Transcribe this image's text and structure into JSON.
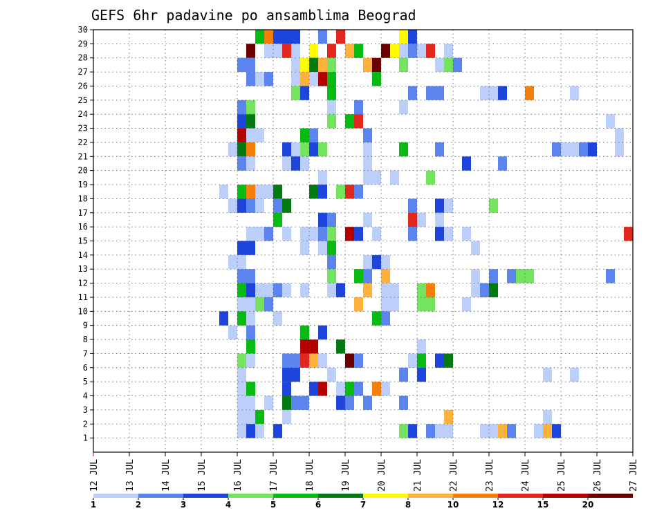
{
  "chart_data": {
    "type": "heatmap",
    "title": "GEFS 6hr padavine po ansamblima Beograd",
    "xlabel": "",
    "ylabel": "",
    "x_ticks": [
      "12 JUL",
      "13 JUL",
      "14 JUL",
      "15 JUL",
      "16 JUL",
      "17 JUL",
      "18 JUL",
      "19 JUL",
      "20 JUL",
      "21 JUL",
      "22 JUL",
      "23 JUL",
      "24 JUL",
      "25 JUL",
      "26 JUL",
      "27 JUL"
    ],
    "xlim": [
      "12 JUL 00Z",
      "27 JUL 00Z"
    ],
    "y_ticks": [
      1,
      2,
      3,
      4,
      5,
      6,
      7,
      8,
      9,
      10,
      11,
      12,
      13,
      14,
      15,
      16,
      17,
      18,
      19,
      20,
      21,
      22,
      23,
      24,
      25,
      26,
      27,
      28,
      29,
      30
    ],
    "ylim": [
      0,
      30
    ],
    "grid": true,
    "legend": {
      "placement": "bottom",
      "levels": [
        1,
        2,
        3,
        4,
        5,
        6,
        7,
        8,
        10,
        12,
        15,
        20
      ],
      "colors": [
        "#bccffa",
        "#5c84ee",
        "#1d45dc",
        "#74e35d",
        "#07bb12",
        "#037b12",
        "#fffc00",
        "#ffb23b",
        "#f57f0c",
        "#e2281e",
        "#b50000",
        "#6b0000"
      ]
    },
    "cells_note": "",
    "cells": [
      [
        "16 JUL 12Z",
        30,
        5
      ],
      [
        "16 JUL 18Z",
        30,
        9
      ],
      [
        "17 JUL 00Z",
        30,
        3
      ],
      [
        "17 JUL 06Z",
        30,
        3
      ],
      [
        "17 JUL 12Z",
        30,
        3
      ],
      [
        "18 JUL 18Z",
        30,
        10
      ],
      [
        "18 JUL 06Z",
        30,
        2
      ],
      [
        "20 JUL 12Z",
        30,
        7
      ],
      [
        "20 JUL 18Z",
        30,
        3
      ],
      [
        "16 JUL 18Z",
        29,
        1
      ],
      [
        "17 JUL 00Z",
        29,
        1
      ],
      [
        "16 JUL 06Z",
        29,
        12
      ],
      [
        "17 JUL 06Z",
        29,
        10
      ],
      [
        "17 JUL 12Z",
        29,
        1
      ],
      [
        "18 JUL 00Z",
        29,
        7
      ],
      [
        "18 JUL 12Z",
        29,
        10
      ],
      [
        "19 JUL 00Z",
        29,
        8
      ],
      [
        "19 JUL 06Z",
        29,
        5
      ],
      [
        "20 JUL 00Z",
        29,
        12
      ],
      [
        "20 JUL 06Z",
        29,
        7
      ],
      [
        "20 JUL 12Z",
        29,
        1
      ],
      [
        "20 JUL 18Z",
        29,
        2
      ],
      [
        "21 JUL 00Z",
        29,
        1
      ],
      [
        "21 JUL 06Z",
        29,
        10
      ],
      [
        "21 JUL 18Z",
        29,
        1
      ],
      [
        "16 JUL 00Z",
        28,
        2
      ],
      [
        "16 JUL 06Z",
        28,
        2
      ],
      [
        "17 JUL 12Z",
        28,
        1
      ],
      [
        "17 JUL 18Z",
        28,
        7
      ],
      [
        "18 JUL 00Z",
        28,
        6
      ],
      [
        "18 JUL 06Z",
        28,
        8
      ],
      [
        "18 JUL 12Z",
        28,
        4
      ],
      [
        "19 JUL 12Z",
        28,
        8
      ],
      [
        "19 JUL 18Z",
        28,
        12
      ],
      [
        "20 JUL 12Z",
        28,
        4
      ],
      [
        "21 JUL 12Z",
        28,
        1
      ],
      [
        "21 JUL 18Z",
        28,
        4
      ],
      [
        "22 JUL 00Z",
        28,
        2
      ],
      [
        "16 JUL 06Z",
        27,
        2
      ],
      [
        "16 JUL 12Z",
        27,
        1
      ],
      [
        "16 JUL 18Z",
        27,
        2
      ],
      [
        "17 JUL 12Z",
        27,
        1
      ],
      [
        "17 JUL 18Z",
        27,
        8
      ],
      [
        "18 JUL 00Z",
        27,
        1
      ],
      [
        "18 JUL 06Z",
        27,
        11
      ],
      [
        "18 JUL 12Z",
        27,
        5
      ],
      [
        "19 JUL 18Z",
        27,
        5
      ],
      [
        "27 JUL 00Z",
        27,
        6
      ],
      [
        "17 JUL 12Z",
        26,
        4
      ],
      [
        "17 JUL 18Z",
        26,
        3
      ],
      [
        "18 JUL 12Z",
        26,
        5
      ],
      [
        "20 JUL 18Z",
        26,
        2
      ],
      [
        "21 JUL 06Z",
        26,
        2
      ],
      [
        "21 JUL 12Z",
        26,
        2
      ],
      [
        "22 JUL 18Z",
        26,
        1
      ],
      [
        "23 JUL 00Z",
        26,
        1
      ],
      [
        "23 JUL 06Z",
        26,
        3
      ],
      [
        "24 JUL 00Z",
        26,
        9
      ],
      [
        "25 JUL 06Z",
        26,
        1
      ],
      [
        "16 JUL 00Z",
        25,
        2
      ],
      [
        "16 JUL 06Z",
        25,
        4
      ],
      [
        "18 JUL 12Z",
        25,
        1
      ],
      [
        "19 JUL 06Z",
        25,
        2
      ],
      [
        "20 JUL 12Z",
        25,
        1
      ],
      [
        "16 JUL 00Z",
        24,
        3
      ],
      [
        "16 JUL 06Z",
        24,
        6
      ],
      [
        "18 JUL 12Z",
        24,
        4
      ],
      [
        "19 JUL 00Z",
        24,
        5
      ],
      [
        "19 JUL 06Z",
        24,
        10
      ],
      [
        "26 JUL 06Z",
        24,
        1
      ],
      [
        "27 JUL 00Z",
        24,
        3
      ],
      [
        "16 JUL 00Z",
        23,
        11
      ],
      [
        "16 JUL 06Z",
        23,
        1
      ],
      [
        "16 JUL 12Z",
        23,
        1
      ],
      [
        "17 JUL 18Z",
        23,
        5
      ],
      [
        "18 JUL 00Z",
        23,
        2
      ],
      [
        "19 JUL 12Z",
        23,
        2
      ],
      [
        "26 JUL 12Z",
        23,
        1
      ],
      [
        "15 JUL 18Z",
        22,
        1
      ],
      [
        "16 JUL 00Z",
        22,
        6
      ],
      [
        "16 JUL 06Z",
        22,
        9
      ],
      [
        "17 JUL 06Z",
        22,
        3
      ],
      [
        "17 JUL 12Z",
        22,
        1
      ],
      [
        "17 JUL 18Z",
        22,
        4
      ],
      [
        "18 JUL 00Z",
        22,
        3
      ],
      [
        "18 JUL 06Z",
        22,
        4
      ],
      [
        "19 JUL 12Z",
        22,
        1
      ],
      [
        "20 JUL 12Z",
        22,
        5
      ],
      [
        "21 JUL 12Z",
        22,
        2
      ],
      [
        "24 JUL 18Z",
        22,
        2
      ],
      [
        "25 JUL 00Z",
        22,
        1
      ],
      [
        "25 JUL 06Z",
        22,
        1
      ],
      [
        "25 JUL 12Z",
        22,
        2
      ],
      [
        "25 JUL 18Z",
        22,
        3
      ],
      [
        "26 JUL 12Z",
        22,
        1
      ],
      [
        "16 JUL 00Z",
        21,
        2
      ],
      [
        "16 JUL 06Z",
        21,
        1
      ],
      [
        "17 JUL 06Z",
        21,
        1
      ],
      [
        "17 JUL 12Z",
        21,
        3
      ],
      [
        "17 JUL 18Z",
        21,
        1
      ],
      [
        "19 JUL 12Z",
        21,
        1
      ],
      [
        "22 JUL 06Z",
        21,
        3
      ],
      [
        "23 JUL 06Z",
        21,
        2
      ],
      [
        "18 JUL 06Z",
        20,
        1
      ],
      [
        "19 JUL 12Z",
        20,
        1
      ],
      [
        "19 JUL 18Z",
        20,
        1
      ],
      [
        "20 JUL 06Z",
        20,
        1
      ],
      [
        "21 JUL 06Z",
        20,
        4
      ],
      [
        "27 JUL 00Z",
        20,
        5
      ],
      [
        "15 JUL 12Z",
        19,
        1
      ],
      [
        "16 JUL 00Z",
        19,
        5
      ],
      [
        "16 JUL 06Z",
        19,
        9
      ],
      [
        "16 JUL 12Z",
        19,
        1
      ],
      [
        "16 JUL 18Z",
        19,
        1
      ],
      [
        "17 JUL 00Z",
        19,
        6
      ],
      [
        "18 JUL 00Z",
        19,
        6
      ],
      [
        "18 JUL 06Z",
        19,
        3
      ],
      [
        "18 JUL 18Z",
        19,
        4
      ],
      [
        "19 JUL 00Z",
        19,
        10
      ],
      [
        "19 JUL 06Z",
        19,
        2
      ],
      [
        "15 JUL 18Z",
        18,
        1
      ],
      [
        "16 JUL 00Z",
        18,
        3
      ],
      [
        "16 JUL 06Z",
        18,
        2
      ],
      [
        "16 JUL 12Z",
        18,
        1
      ],
      [
        "17 JUL 00Z",
        18,
        2
      ],
      [
        "17 JUL 06Z",
        18,
        6
      ],
      [
        "20 JUL 18Z",
        18,
        2
      ],
      [
        "21 JUL 12Z",
        18,
        3
      ],
      [
        "21 JUL 18Z",
        18,
        1
      ],
      [
        "23 JUL 00Z",
        18,
        4
      ],
      [
        "17 JUL 00Z",
        17,
        5
      ],
      [
        "18 JUL 06Z",
        17,
        3
      ],
      [
        "18 JUL 12Z",
        17,
        2
      ],
      [
        "19 JUL 12Z",
        17,
        1
      ],
      [
        "20 JUL 18Z",
        17,
        10
      ],
      [
        "21 JUL 00Z",
        17,
        1
      ],
      [
        "21 JUL 12Z",
        17,
        1
      ],
      [
        "27 JUL 00Z",
        17,
        6
      ],
      [
        "16 JUL 06Z",
        16,
        1
      ],
      [
        "16 JUL 12Z",
        16,
        1
      ],
      [
        "16 JUL 18Z",
        16,
        2
      ],
      [
        "17 JUL 06Z",
        16,
        1
      ],
      [
        "17 JUL 18Z",
        16,
        1
      ],
      [
        "18 JUL 00Z",
        16,
        1
      ],
      [
        "18 JUL 06Z",
        16,
        2
      ],
      [
        "18 JUL 12Z",
        16,
        4
      ],
      [
        "19 JUL 00Z",
        16,
        11
      ],
      [
        "19 JUL 06Z",
        16,
        3
      ],
      [
        "19 JUL 18Z",
        16,
        1
      ],
      [
        "20 JUL 18Z",
        16,
        2
      ],
      [
        "21 JUL 12Z",
        16,
        3
      ],
      [
        "21 JUL 18Z",
        16,
        1
      ],
      [
        "22 JUL 06Z",
        16,
        1
      ],
      [
        "26 JUL 18Z",
        16,
        10
      ],
      [
        "16 JUL 00Z",
        15,
        3
      ],
      [
        "16 JUL 06Z",
        15,
        3
      ],
      [
        "17 JUL 18Z",
        15,
        1
      ],
      [
        "18 JUL 06Z",
        15,
        1
      ],
      [
        "18 JUL 12Z",
        15,
        5
      ],
      [
        "22 JUL 12Z",
        15,
        1
      ],
      [
        "16 JUL 00Z",
        14,
        1
      ],
      [
        "15 JUL 18Z",
        14,
        1
      ],
      [
        "18 JUL 12Z",
        14,
        2
      ],
      [
        "19 JUL 12Z",
        14,
        1
      ],
      [
        "19 JUL 18Z",
        14,
        3
      ],
      [
        "20 JUL 00Z",
        14,
        1
      ],
      [
        "16 JUL 00Z",
        13,
        2
      ],
      [
        "16 JUL 06Z",
        13,
        2
      ],
      [
        "18 JUL 12Z",
        13,
        4
      ],
      [
        "19 JUL 06Z",
        13,
        5
      ],
      [
        "19 JUL 12Z",
        13,
        2
      ],
      [
        "20 JUL 00Z",
        13,
        8
      ],
      [
        "22 JUL 12Z",
        13,
        1
      ],
      [
        "23 JUL 00Z",
        13,
        2
      ],
      [
        "23 JUL 12Z",
        13,
        2
      ],
      [
        "23 JUL 18Z",
        13,
        4
      ],
      [
        "24 JUL 00Z",
        13,
        4
      ],
      [
        "26 JUL 06Z",
        13,
        2
      ],
      [
        "27 JUL 00Z",
        13,
        1
      ],
      [
        "16 JUL 00Z",
        12,
        5
      ],
      [
        "16 JUL 06Z",
        12,
        3
      ],
      [
        "16 JUL 12Z",
        12,
        1
      ],
      [
        "16 JUL 18Z",
        12,
        1
      ],
      [
        "17 JUL 00Z",
        12,
        2
      ],
      [
        "17 JUL 06Z",
        12,
        1
      ],
      [
        "17 JUL 18Z",
        12,
        1
      ],
      [
        "18 JUL 12Z",
        12,
        1
      ],
      [
        "18 JUL 18Z",
        12,
        3
      ],
      [
        "19 JUL 12Z",
        12,
        8
      ],
      [
        "20 JUL 00Z",
        12,
        1
      ],
      [
        "20 JUL 06Z",
        12,
        1
      ],
      [
        "21 JUL 00Z",
        12,
        4
      ],
      [
        "21 JUL 06Z",
        12,
        9
      ],
      [
        "22 JUL 12Z",
        12,
        1
      ],
      [
        "22 JUL 18Z",
        12,
        2
      ],
      [
        "23 JUL 00Z",
        12,
        6
      ],
      [
        "16 JUL 00Z",
        11,
        1
      ],
      [
        "16 JUL 06Z",
        11,
        1
      ],
      [
        "16 JUL 12Z",
        11,
        4
      ],
      [
        "16 JUL 18Z",
        11,
        2
      ],
      [
        "19 JUL 06Z",
        11,
        8
      ],
      [
        "20 JUL 00Z",
        11,
        1
      ],
      [
        "20 JUL 06Z",
        11,
        1
      ],
      [
        "21 JUL 00Z",
        11,
        4
      ],
      [
        "21 JUL 06Z",
        11,
        4
      ],
      [
        "22 JUL 06Z",
        11,
        1
      ],
      [
        "15 JUL 12Z",
        10,
        3
      ],
      [
        "16 JUL 00Z",
        10,
        5
      ],
      [
        "16 JUL 06Z",
        10,
        1
      ],
      [
        "17 JUL 00Z",
        10,
        1
      ],
      [
        "19 JUL 18Z",
        10,
        5
      ],
      [
        "20 JUL 00Z",
        10,
        2
      ],
      [
        "15 JUL 18Z",
        9,
        1
      ],
      [
        "16 JUL 06Z",
        9,
        2
      ],
      [
        "17 JUL 18Z",
        9,
        5
      ],
      [
        "18 JUL 06Z",
        9,
        3
      ],
      [
        "16 JUL 06Z",
        8,
        5
      ],
      [
        "17 JUL 18Z",
        8,
        11
      ],
      [
        "18 JUL 00Z",
        8,
        11
      ],
      [
        "18 JUL 18Z",
        8,
        6
      ],
      [
        "21 JUL 00Z",
        8,
        1
      ],
      [
        "16 JUL 00Z",
        7,
        4
      ],
      [
        "16 JUL 06Z",
        7,
        1
      ],
      [
        "17 JUL 06Z",
        7,
        2
      ],
      [
        "17 JUL 12Z",
        7,
        2
      ],
      [
        "17 JUL 18Z",
        7,
        10
      ],
      [
        "18 JUL 00Z",
        7,
        8
      ],
      [
        "18 JUL 06Z",
        7,
        1
      ],
      [
        "19 JUL 00Z",
        7,
        12
      ],
      [
        "19 JUL 06Z",
        7,
        2
      ],
      [
        "20 JUL 18Z",
        7,
        1
      ],
      [
        "21 JUL 00Z",
        7,
        5
      ],
      [
        "21 JUL 12Z",
        7,
        3
      ],
      [
        "21 JUL 18Z",
        7,
        6
      ],
      [
        "16 JUL 00Z",
        6,
        1
      ],
      [
        "17 JUL 06Z",
        6,
        3
      ],
      [
        "17 JUL 12Z",
        6,
        3
      ],
      [
        "18 JUL 12Z",
        6,
        1
      ],
      [
        "20 JUL 12Z",
        6,
        2
      ],
      [
        "21 JUL 00Z",
        6,
        3
      ],
      [
        "24 JUL 12Z",
        6,
        1
      ],
      [
        "25 JUL 06Z",
        6,
        1
      ],
      [
        "16 JUL 00Z",
        5,
        1
      ],
      [
        "16 JUL 06Z",
        5,
        5
      ],
      [
        "17 JUL 06Z",
        5,
        3
      ],
      [
        "18 JUL 00Z",
        5,
        3
      ],
      [
        "18 JUL 06Z",
        5,
        11
      ],
      [
        "18 JUL 18Z",
        5,
        1
      ],
      [
        "19 JUL 00Z",
        5,
        5
      ],
      [
        "19 JUL 06Z",
        5,
        2
      ],
      [
        "19 JUL 18Z",
        5,
        9
      ],
      [
        "20 JUL 00Z",
        5,
        1
      ],
      [
        "16 JUL 00Z",
        4,
        1
      ],
      [
        "16 JUL 06Z",
        4,
        1
      ],
      [
        "16 JUL 18Z",
        4,
        1
      ],
      [
        "17 JUL 06Z",
        4,
        6
      ],
      [
        "17 JUL 12Z",
        4,
        2
      ],
      [
        "17 JUL 18Z",
        4,
        2
      ],
      [
        "18 JUL 18Z",
        4,
        3
      ],
      [
        "19 JUL 00Z",
        4,
        2
      ],
      [
        "19 JUL 12Z",
        4,
        2
      ],
      [
        "20 JUL 12Z",
        4,
        2
      ],
      [
        "16 JUL 00Z",
        3,
        1
      ],
      [
        "16 JUL 06Z",
        3,
        1
      ],
      [
        "16 JUL 12Z",
        3,
        5
      ],
      [
        "17 JUL 06Z",
        3,
        1
      ],
      [
        "21 JUL 18Z",
        3,
        8
      ],
      [
        "24 JUL 12Z",
        3,
        1
      ],
      [
        "16 JUL 00Z",
        2,
        1
      ],
      [
        "16 JUL 06Z",
        2,
        3
      ],
      [
        "16 JUL 12Z",
        2,
        1
      ],
      [
        "17 JUL 00Z",
        2,
        3
      ],
      [
        "20 JUL 12Z",
        2,
        4
      ],
      [
        "20 JUL 18Z",
        2,
        3
      ],
      [
        "21 JUL 06Z",
        2,
        2
      ],
      [
        "21 JUL 12Z",
        2,
        1
      ],
      [
        "21 JUL 18Z",
        2,
        1
      ],
      [
        "22 JUL 18Z",
        2,
        1
      ],
      [
        "23 JUL 00Z",
        2,
        1
      ],
      [
        "23 JUL 06Z",
        2,
        8
      ],
      [
        "23 JUL 12Z",
        2,
        2
      ],
      [
        "24 JUL 06Z",
        2,
        1
      ],
      [
        "24 JUL 12Z",
        2,
        8
      ],
      [
        "24 JUL 18Z",
        2,
        3
      ]
    ]
  }
}
